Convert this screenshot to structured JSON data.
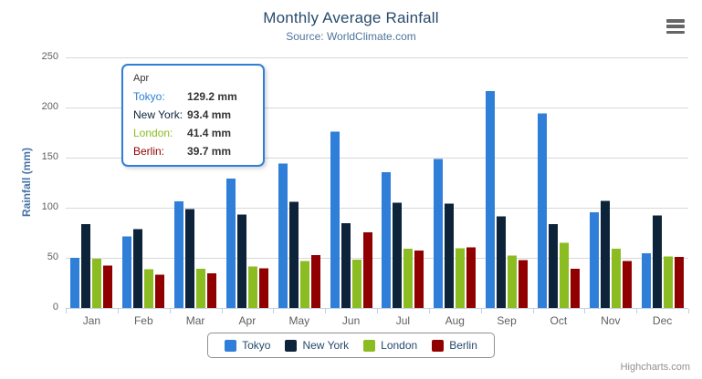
{
  "chart": {
    "title": "Monthly Average Rainfall",
    "subtitle": "Source: WorldClimate.com"
  },
  "y_axis": {
    "title": "Rainfall (mm)",
    "tick_labels": [
      "0",
      "50",
      "100",
      "150",
      "200",
      "250"
    ],
    "tick_values": [
      0,
      50,
      100,
      150,
      200,
      250
    ],
    "max": 250
  },
  "chart_data": {
    "type": "bar",
    "title": "Monthly Average Rainfall",
    "subtitle": "Source: WorldClimate.com",
    "xlabel": "",
    "ylabel": "Rainfall (mm)",
    "ylim": [
      0,
      250
    ],
    "grid": true,
    "legend_position": "bottom",
    "categories": [
      "Jan",
      "Feb",
      "Mar",
      "Apr",
      "May",
      "Jun",
      "Jul",
      "Aug",
      "Sep",
      "Oct",
      "Nov",
      "Dec"
    ],
    "series": [
      {
        "name": "Tokyo",
        "color": "#2f7ed8",
        "values": [
          49.9,
          71.5,
          106.4,
          129.2,
          144.0,
          176.0,
          135.6,
          148.5,
          216.4,
          194.1,
          95.6,
          54.4
        ]
      },
      {
        "name": "New York",
        "color": "#0d233a",
        "values": [
          83.6,
          78.8,
          98.5,
          93.4,
          106.0,
          84.5,
          105.0,
          104.3,
          91.2,
          83.5,
          106.6,
          92.3
        ]
      },
      {
        "name": "London",
        "color": "#8bbc21",
        "values": [
          48.9,
          38.8,
          39.3,
          41.4,
          47.0,
          48.3,
          59.0,
          59.6,
          52.4,
          65.2,
          59.3,
          51.2
        ]
      },
      {
        "name": "Berlin",
        "color": "#910000",
        "values": [
          42.4,
          33.2,
          34.5,
          39.7,
          52.6,
          75.5,
          57.4,
          60.4,
          47.6,
          39.1,
          46.8,
          51.1
        ]
      }
    ]
  },
  "tooltip": {
    "header": "Apr",
    "rows": [
      {
        "label": "Tokyo:",
        "value": "129.2 mm",
        "color": "#2f7ed8"
      },
      {
        "label": "New York:",
        "value": "93.4 mm",
        "color": "#0d233a"
      },
      {
        "label": "London:",
        "value": "41.4 mm",
        "color": "#8bbc21"
      },
      {
        "label": "Berlin:",
        "value": "39.7 mm",
        "color": "#910000"
      }
    ]
  },
  "legend": {
    "items": [
      {
        "label": "Tokyo",
        "color": "#2f7ed8"
      },
      {
        "label": "New York",
        "color": "#0d233a"
      },
      {
        "label": "London",
        "color": "#8bbc21"
      },
      {
        "label": "Berlin",
        "color": "#910000"
      }
    ]
  },
  "credits": {
    "text": "Highcharts.com"
  },
  "colors": {
    "grid_line": "#d8d8d8",
    "axis_line": "#c0d0e0",
    "tooltip_border": "#2f7ed8"
  }
}
